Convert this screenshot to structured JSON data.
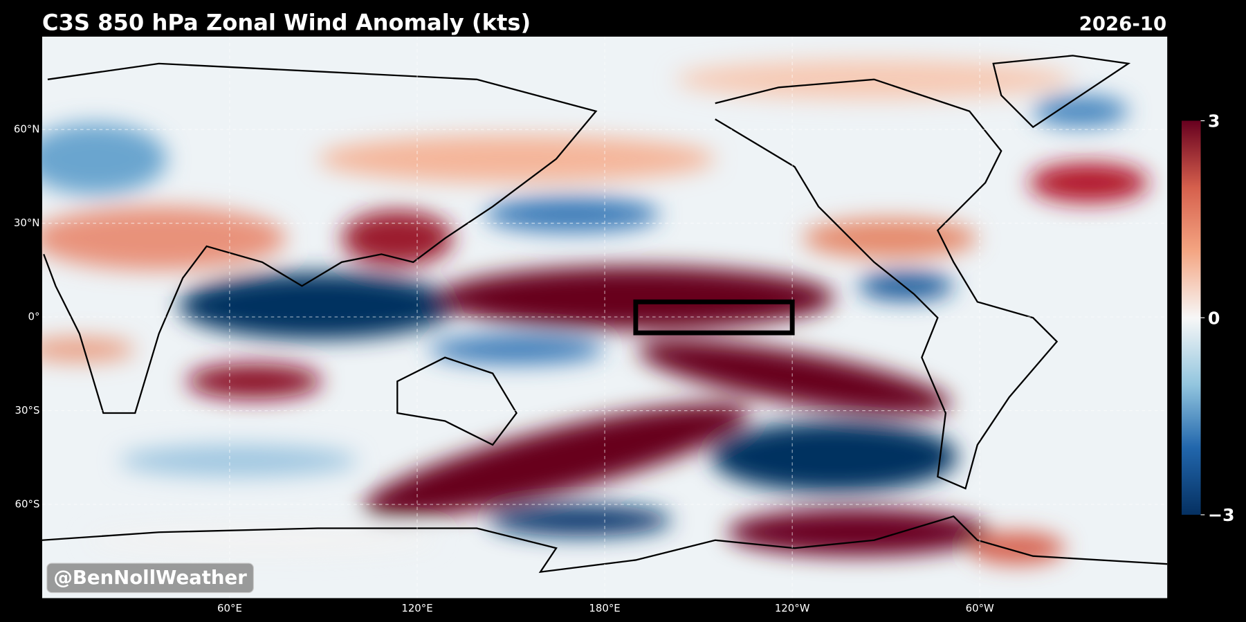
{
  "header": {
    "title": "C3S 850 hPa Zonal Wind Anomaly (kts)",
    "date": "2026-10"
  },
  "map": {
    "lat_labels": [
      "60°N",
      "30°N",
      "0°",
      "30°S",
      "60°S"
    ],
    "lon_labels": [
      "60°E",
      "120°E",
      "180°E",
      "120°W",
      "60°W"
    ]
  },
  "colorbar": {
    "range": [
      -3,
      3
    ],
    "ticks": [
      3,
      0,
      {
        "value": -3,
        "label": "−3"
      }
    ]
  },
  "watermark": "@BenNollWeather"
}
